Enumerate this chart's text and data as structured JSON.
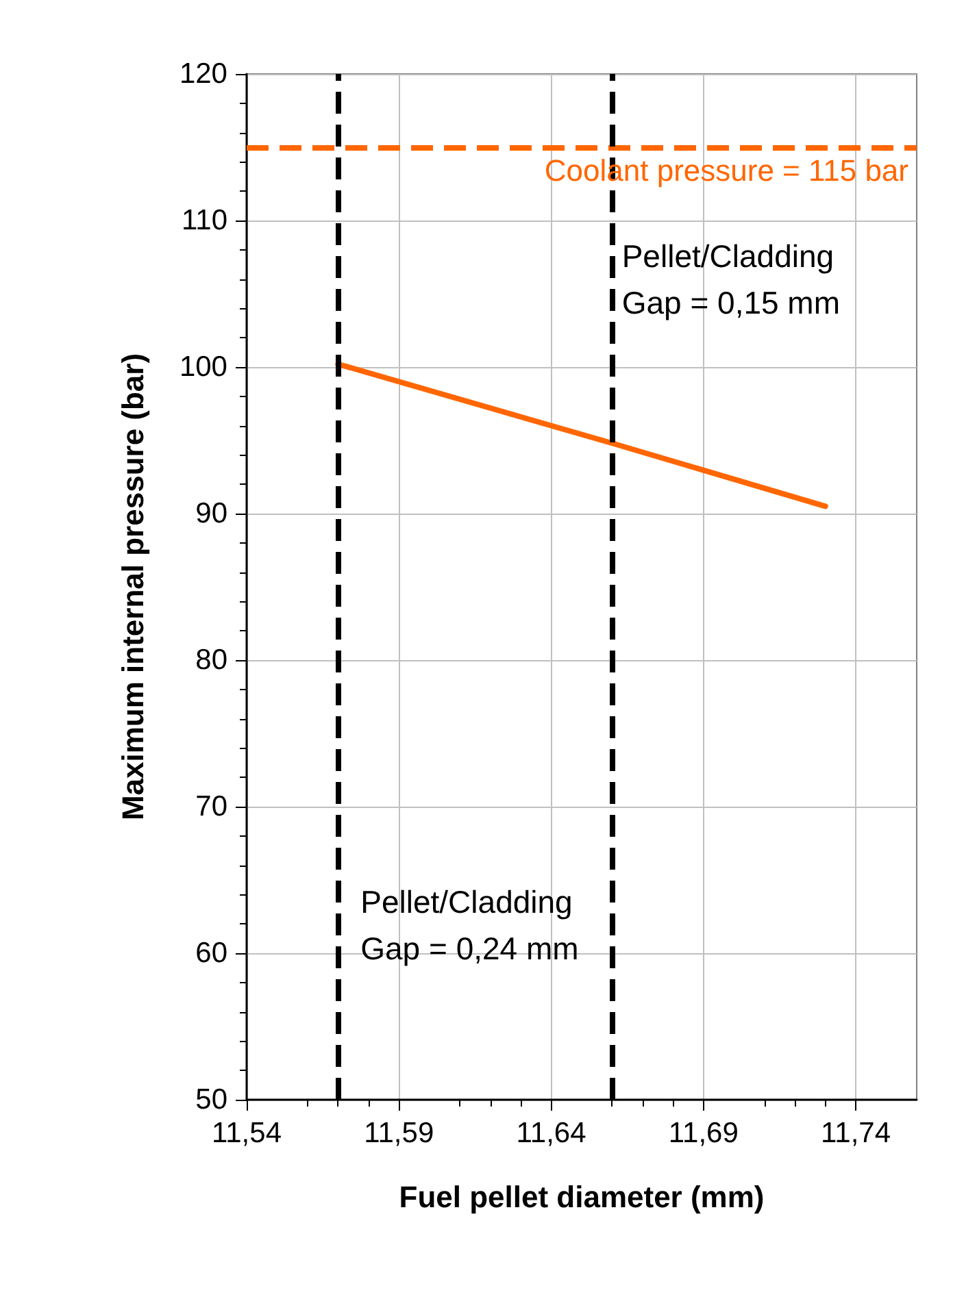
{
  "chart_data": {
    "type": "line",
    "xlabel": "Fuel pellet diameter (mm)",
    "ylabel": "Maximum internal pressure (bar)",
    "x": [
      11.57,
      11.66,
      11.73
    ],
    "series": [
      {
        "color": "#ff6600",
        "values": [
          100.2,
          94.8,
          90.5
        ]
      }
    ],
    "xlim": [
      11.54,
      11.76
    ],
    "xticks": [
      {
        "value": 11.54,
        "label": "11,54"
      },
      {
        "value": 11.59,
        "label": "11,59"
      },
      {
        "value": 11.64,
        "label": "11,64"
      },
      {
        "value": 11.69,
        "label": "11,69"
      },
      {
        "value": 11.74,
        "label": "11,74"
      }
    ],
    "ylim": [
      50,
      120
    ],
    "yticks": [
      50,
      60,
      70,
      80,
      90,
      100,
      110,
      120
    ],
    "grid": true,
    "marker": "none",
    "line_style": "solid",
    "ref_lines": [
      {
        "axis": "y",
        "value": 115,
        "label": "Coolant pressure = 115 bar",
        "color": "#ff6600",
        "line_style": "dashed"
      },
      {
        "axis": "x",
        "value": 11.57,
        "label": null,
        "color": "#000000",
        "line_style": "dashed"
      },
      {
        "axis": "x",
        "value": 11.66,
        "label": null,
        "color": "#000000",
        "line_style": "dashed"
      }
    ],
    "annotations": [
      "Pellet/Cladding\nGap = 0,15 mm",
      "Pellet/Cladding\nGap = 0,24 mm"
    ]
  }
}
